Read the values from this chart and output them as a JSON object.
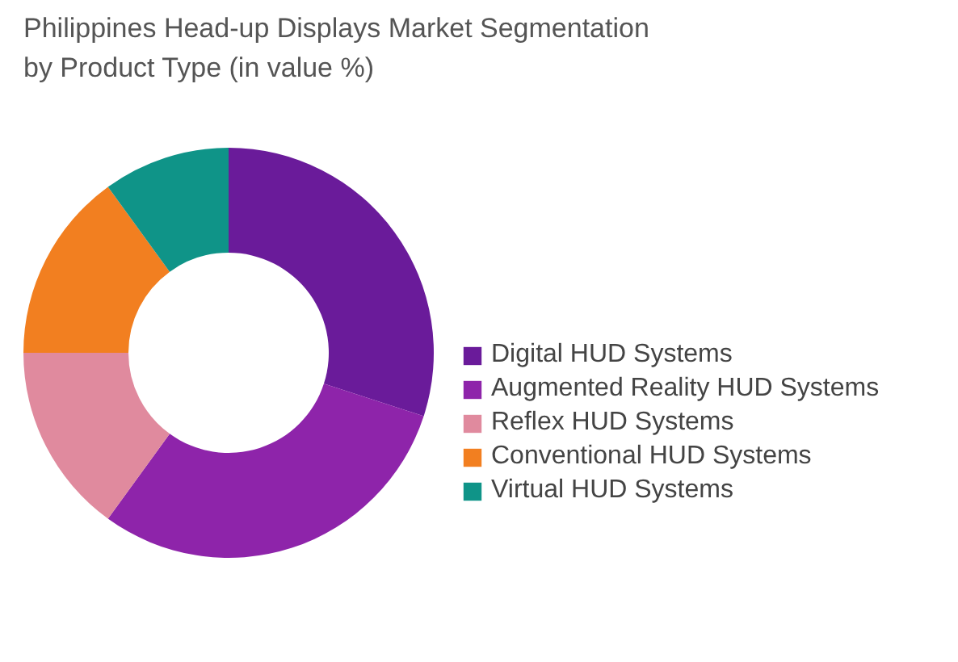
{
  "chart_data": {
    "type": "donut",
    "title": "Philippines Head-up Displays Market Segmentation by Product Type (in value %)",
    "categories": [
      "Digital HUD Systems",
      "Augmented Reality HUD Systems",
      "Reflex HUD Systems",
      "Conventional HUD Systems",
      "Virtual HUD Systems"
    ],
    "values": [
      30,
      30,
      15,
      15,
      10
    ],
    "colors": [
      "#6a1b9a",
      "#8e24aa",
      "#e08a9e",
      "#f27f20",
      "#0f9488"
    ],
    "legend": "right"
  }
}
